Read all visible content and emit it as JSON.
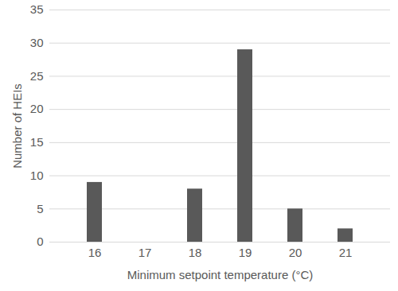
{
  "chart_data": {
    "type": "bar",
    "x_label": "Minimum setpoint temperature (°C)",
    "y_label": "Number of HEIs",
    "categories": [
      "16",
      "17",
      "18",
      "19",
      "20",
      "21"
    ],
    "values": [
      9,
      0,
      8,
      29,
      5,
      2
    ],
    "color": "#595959",
    "ylim": [
      0,
      35
    ],
    "yticks": [
      0,
      5,
      10,
      15,
      20,
      25,
      30,
      35
    ],
    "grid": true
  }
}
